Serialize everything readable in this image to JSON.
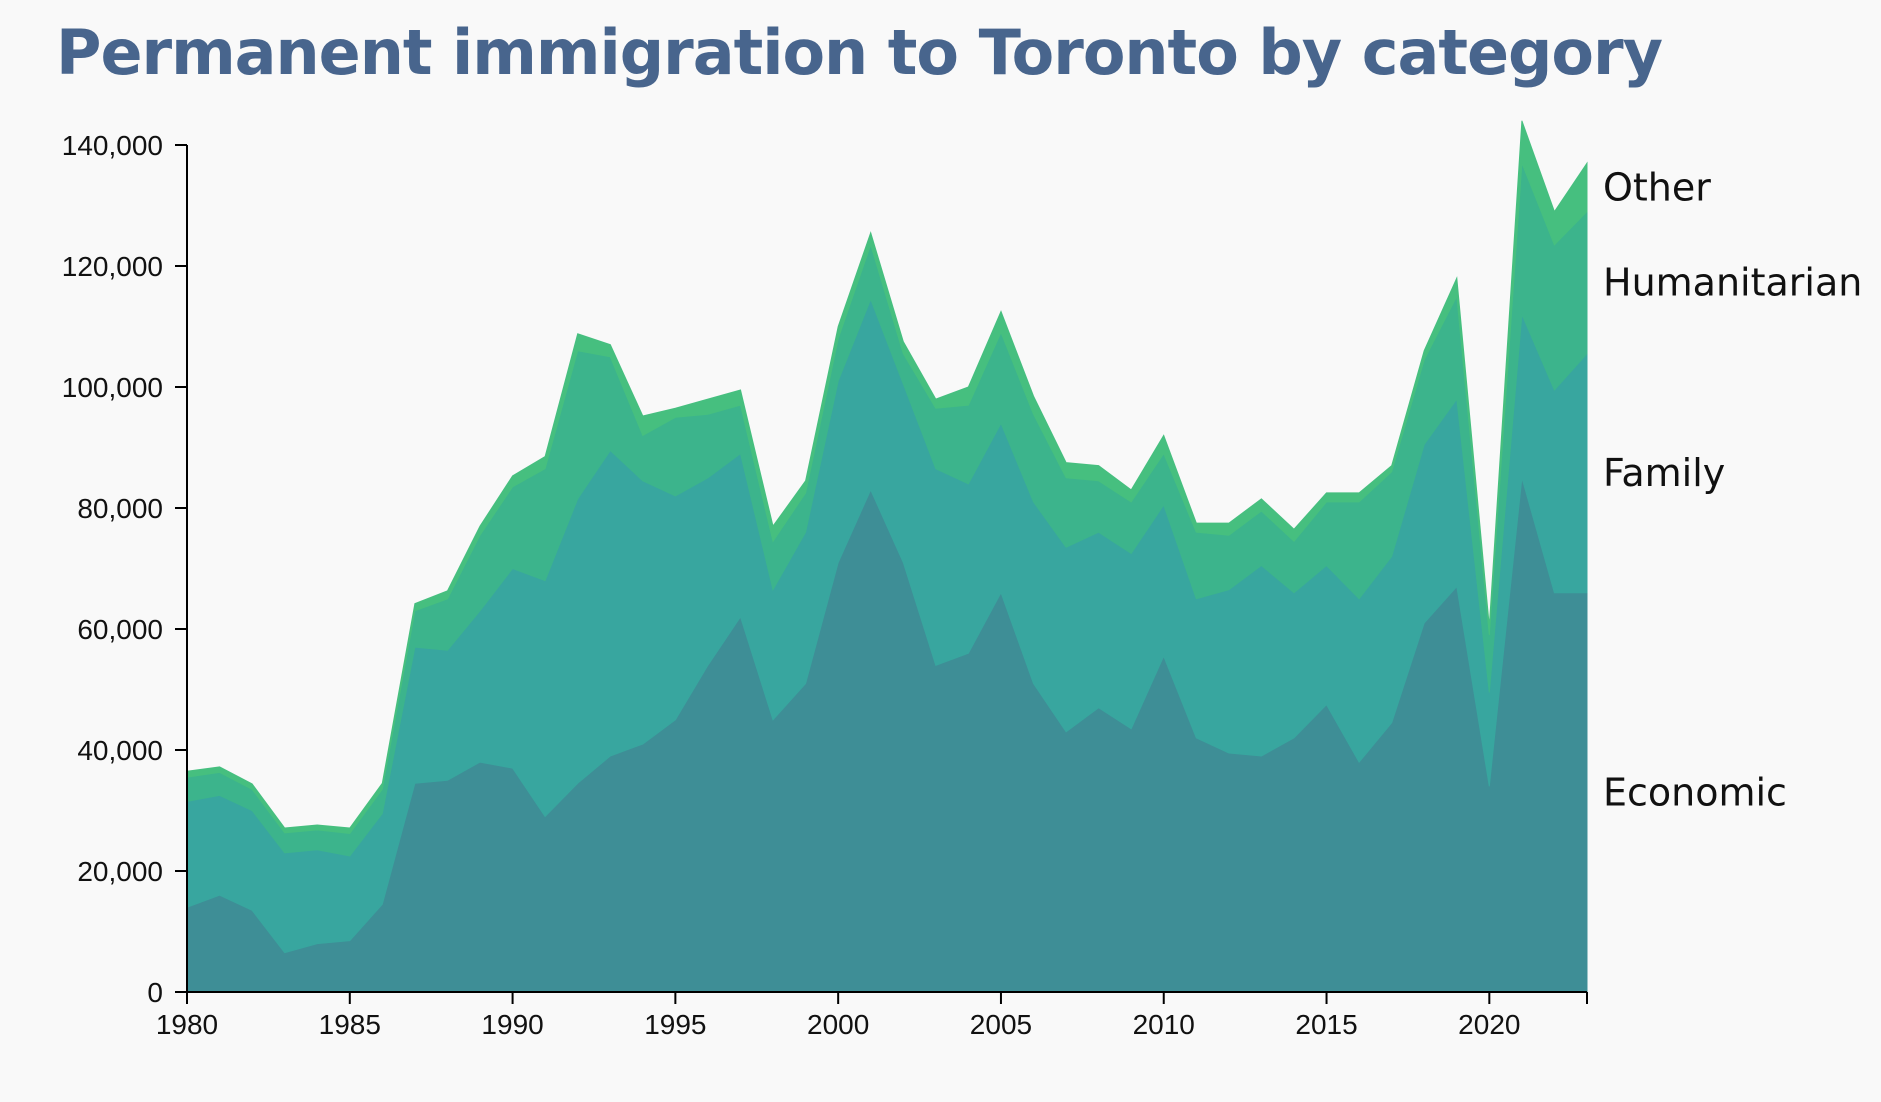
{
  "chart_data": {
    "type": "area",
    "stacked": true,
    "title": "Permanent immigration to Toronto by category",
    "xlabel": "",
    "ylabel": "",
    "xlim": [
      1980,
      2023
    ],
    "ylim": [
      0,
      140000
    ],
    "grid": false,
    "legend": "direct labels at right end of areas",
    "x": [
      1980,
      1981,
      1982,
      1983,
      1984,
      1985,
      1986,
      1987,
      1988,
      1989,
      1990,
      1991,
      1992,
      1993,
      1994,
      1995,
      1996,
      1997,
      1998,
      1999,
      2000,
      2001,
      2002,
      2003,
      2004,
      2005,
      2006,
      2007,
      2008,
      2009,
      2010,
      2011,
      2012,
      2013,
      2014,
      2015,
      2016,
      2017,
      2018,
      2019,
      2020,
      2021,
      2022,
      2023
    ],
    "x_ticks": [
      "1980",
      "1985",
      "1990",
      "1995",
      "2000",
      "2005",
      "2010",
      "2015",
      "2020"
    ],
    "x_tick_values": [
      1980,
      1985,
      1990,
      1995,
      2000,
      2005,
      2010,
      2015,
      2020
    ],
    "y_ticks": [
      "0",
      "20,000",
      "40,000",
      "60,000",
      "80,000",
      "100,000",
      "120,000",
      "140,000"
    ],
    "y_tick_values": [
      0,
      20000,
      40000,
      60000,
      80000,
      100000,
      120000,
      140000
    ],
    "series": [
      {
        "name": "Economic",
        "color": "#3e8e96",
        "values": [
          14000,
          16000,
          13500,
          6500,
          8000,
          8500,
          14500,
          34500,
          35000,
          38000,
          37000,
          29000,
          34500,
          39000,
          41000,
          45000,
          54000,
          62000,
          45000,
          51000,
          71000,
          83000,
          71000,
          54000,
          56000,
          66000,
          51000,
          43000,
          47000,
          43500,
          55500,
          42000,
          39500,
          39000,
          42000,
          47500,
          38000,
          44500,
          61000,
          67000,
          34000,
          85000,
          66000,
          66000
        ]
      },
      {
        "name": "Family",
        "color": "#38a69f",
        "values": [
          17500,
          16500,
          16500,
          16500,
          15500,
          14000,
          15000,
          22500,
          21500,
          25000,
          33000,
          39000,
          47000,
          50500,
          43500,
          37000,
          31000,
          27000,
          21500,
          25000,
          30000,
          31500,
          29500,
          32500,
          28000,
          28000,
          30000,
          30500,
          29000,
          29000,
          25000,
          23000,
          27000,
          31500,
          24000,
          23000,
          27000,
          27500,
          29500,
          31000,
          15500,
          27000,
          33500,
          39500
        ]
      },
      {
        "name": "Humanitarian",
        "color": "#3cb48c",
        "values": [
          4000,
          3800,
          3500,
          3300,
          3300,
          3700,
          4000,
          6000,
          8500,
          12500,
          13500,
          18500,
          24500,
          15500,
          7500,
          13000,
          10500,
          8000,
          8000,
          6500,
          7000,
          9000,
          5000,
          10000,
          13000,
          15000,
          14500,
          11500,
          8500,
          8500,
          8500,
          11000,
          9000,
          9000,
          8500,
          10500,
          16000,
          14000,
          14000,
          17000,
          9500,
          25000,
          24000,
          23500
        ]
      },
      {
        "name": "Other",
        "color": "#46bf7f",
        "values": [
          1000,
          900,
          900,
          800,
          800,
          900,
          1000,
          1200,
          1300,
          1500,
          1800,
          2000,
          2800,
          2000,
          3200,
          1500,
          2500,
          2500,
          2500,
          2000,
          2000,
          2000,
          2000,
          1500,
          3000,
          3500,
          3000,
          2500,
          2500,
          2000,
          3000,
          1500,
          2000,
          2000,
          2000,
          1500,
          1500,
          1000,
          1500,
          3000,
          1500,
          7000,
          5500,
          8000
        ]
      }
    ]
  }
}
